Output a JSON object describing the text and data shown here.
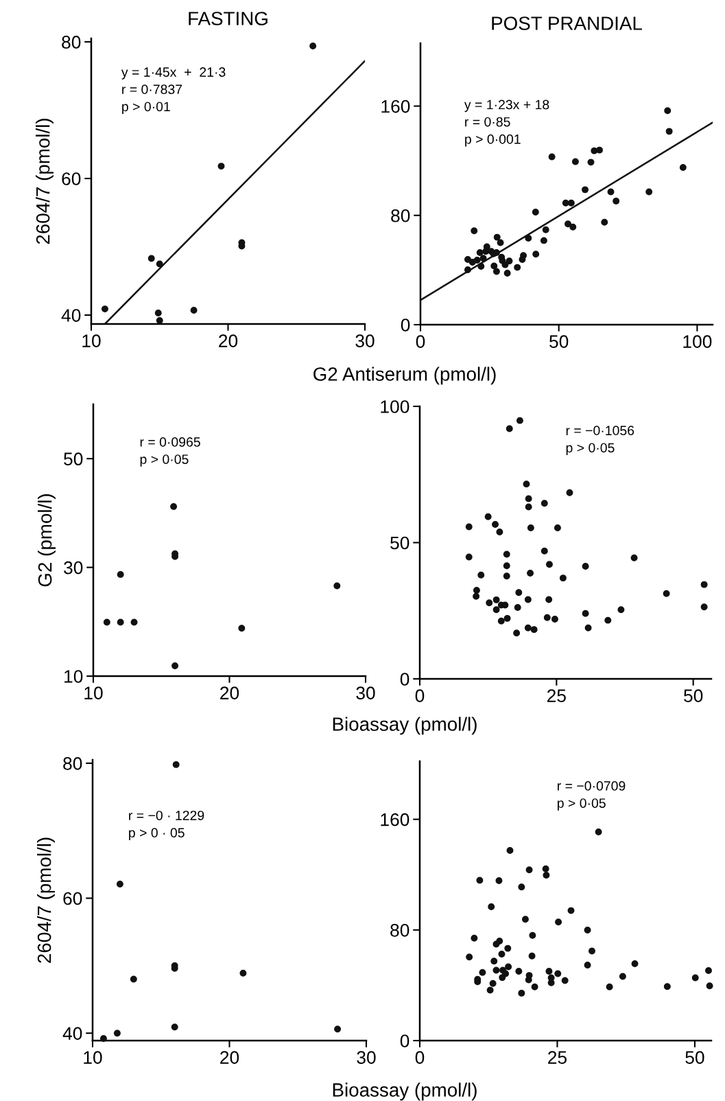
{
  "chart_data": [
    {
      "type": "scatter",
      "title": "FASTING",
      "ylabel": "2604/7 (pmol/l)",
      "xlabel": "G2 Antiserum (pmol/l)",
      "xlim": [
        10,
        30
      ],
      "ylim": [
        38.7,
        80.5
      ],
      "xticks": [
        10,
        20,
        30
      ],
      "yticks": [
        40,
        60,
        80
      ],
      "annotations": [
        "y = 1·45x  +  21·3\nr = 0·7837\np > 0·01"
      ],
      "series": [
        {
          "marker": "circle",
          "color": "#111111",
          "x": [
            11.0,
            14.4,
            15.0,
            14.9,
            15.0,
            17.5,
            19.5,
            21.0,
            21.0,
            26.2
          ],
          "values": [
            40.9,
            48.3,
            47.5,
            40.3,
            39.2,
            40.7,
            61.8,
            50.6,
            50.1,
            79.4
          ]
        },
        {
          "type": "line",
          "color": "#111111",
          "x": [
            11,
            30
          ],
          "values": [
            38.7,
            77.2
          ]
        }
      ]
    },
    {
      "type": "scatter",
      "title": "POST PRANDIAL",
      "xlim": [
        0,
        105.6
      ],
      "ylim": [
        0,
        206
      ],
      "xticks": [
        0,
        50,
        100
      ],
      "yticks": [
        0,
        80,
        160
      ],
      "annotations": [
        "y = 1·23x + 18\nr = 0·85\np > 0·001"
      ],
      "series": [
        {
          "marker": "circle",
          "color": "#111111",
          "x": [
            19.4,
            17.1,
            17.1,
            18.8,
            20.5,
            21.5,
            21.9,
            22.7,
            24.0,
            23.6,
            25.6,
            26.4,
            27.5,
            27.7,
            28.9,
            29.3,
            29.6,
            26.6,
            27.5,
            30.6,
            32.1,
            31.4,
            35.0,
            36.8,
            37.2,
            39.0,
            41.7,
            41.6,
            44.6,
            45.3,
            47.5,
            52.5,
            54.5,
            53.3,
            55.1,
            56.0,
            59.5,
            61.6,
            62.8,
            64.7,
            66.5,
            68.8,
            70.7,
            82.6,
            89.3,
            89.9,
            94.9
          ],
          "values": [
            68.7,
            47.7,
            40.2,
            45.7,
            47.2,
            52.8,
            42.7,
            48.6,
            57.0,
            53.6,
            53.6,
            51.9,
            52.8,
            64.0,
            60.0,
            49.4,
            46.9,
            43.0,
            38.9,
            43.9,
            46.6,
            37.7,
            41.9,
            47.7,
            50.6,
            63.3,
            51.6,
            82.4,
            61.6,
            69.5,
            122.8,
            89.1,
            89.1,
            73.7,
            71.5,
            119.3,
            98.8,
            118.9,
            127.3,
            127.8,
            75.0,
            97.2,
            90.5,
            97.2,
            156.6,
            141.5,
            115.1
          ]
        },
        {
          "type": "line",
          "color": "#111111",
          "x": [
            0,
            105.6
          ],
          "values": [
            18,
            148
          ]
        }
      ]
    },
    {
      "type": "scatter",
      "ylabel": "G2 (pmol/l)",
      "xlabel": "Bioassay (pmol/l)",
      "xlim": [
        10,
        30
      ],
      "ylim": [
        10,
        60
      ],
      "xticks": [
        10,
        20,
        30
      ],
      "yticks": [
        10,
        30,
        50
      ],
      "annotations": [
        "r = 0·0965\np > 0·05"
      ],
      "series": [
        {
          "marker": "circle",
          "color": "#111111",
          "x": [
            11.0,
            12.0,
            13.0,
            12.0,
            15.9,
            16.0,
            16.0,
            16.0,
            20.9,
            27.9
          ],
          "values": [
            19.9,
            19.9,
            19.9,
            28.7,
            41.2,
            32.5,
            32.0,
            11.9,
            18.8,
            26.6
          ]
        }
      ]
    },
    {
      "type": "scatter",
      "xlim": [
        0,
        53.3
      ],
      "ylim": [
        0,
        100
      ],
      "xticks": [
        0,
        25,
        50
      ],
      "yticks": [
        0,
        50,
        100
      ],
      "annotations": [
        "r = −0·1056\np > 0·05"
      ],
      "series": [
        {
          "marker": "circle",
          "color": "#111111",
          "x": [
            16.4,
            18.3,
            19.5,
            19.9,
            19.9,
            22.8,
            27.4,
            12.5,
            13.8,
            14.6,
            9.0,
            20.3,
            25.2,
            9.0,
            15.9,
            22.8,
            15.9,
            23.7,
            30.3,
            39.2,
            11.2,
            15.9,
            20.2,
            26.2,
            10.4,
            10.3,
            18.1,
            19.8,
            23.6,
            12.7,
            14.0,
            14.9,
            15.6,
            14.0,
            14.9,
            16.0,
            17.9,
            23.3,
            24.7,
            30.3,
            36.8,
            34.4,
            30.8,
            19.8,
            20.9,
            17.7,
            45.1,
            52.0,
            52.0
          ],
          "values": [
            91.8,
            94.8,
            71.5,
            66.1,
            63.1,
            64.4,
            68.3,
            59.5,
            56.7,
            53.9,
            55.8,
            55.4,
            55.4,
            44.7,
            45.7,
            46.9,
            41.5,
            42.0,
            41.3,
            44.4,
            38.1,
            37.7,
            38.8,
            37.0,
            32.5,
            30.3,
            31.7,
            29.1,
            29.1,
            27.9,
            29.0,
            27.1,
            27.1,
            25.4,
            21.2,
            22.2,
            26.2,
            22.5,
            21.9,
            24.0,
            25.4,
            21.5,
            18.7,
            18.7,
            18.1,
            16.8,
            31.3,
            34.6,
            26.4
          ]
        }
      ]
    },
    {
      "type": "scatter",
      "ylabel": "2604/7 (pmol/l)",
      "xlabel": "Bioassay (pmol/l)",
      "xlim": [
        10,
        30
      ],
      "ylim": [
        38.9,
        80.5
      ],
      "xticks": [
        10,
        20,
        30
      ],
      "yticks": [
        40,
        60,
        80
      ],
      "annotations": [
        "r = −0 · 1229\np > 0 · 05"
      ],
      "series": [
        {
          "marker": "circle",
          "color": "#111111",
          "x": [
            16.1,
            12.0,
            13.0,
            16.0,
            16.0,
            21.0,
            11.8,
            10.8,
            16.0,
            27.9
          ],
          "values": [
            79.8,
            62.1,
            48.0,
            50.0,
            49.6,
            48.9,
            40.0,
            39.2,
            40.9,
            40.6
          ]
        }
      ]
    },
    {
      "type": "scatter",
      "xlim": [
        0,
        53.0
      ],
      "ylim": [
        0,
        202
      ],
      "xticks": [
        0,
        25,
        50
      ],
      "yticks": [
        0,
        80,
        160
      ],
      "annotations": [
        "r = −0·0709\np > 0·05"
      ],
      "series": [
        {
          "marker": "circle",
          "color": "#111111",
          "x": [
            32.5,
            16.4,
            19.9,
            22.9,
            23.0,
            10.9,
            14.4,
            18.5,
            13.0,
            27.5,
            19.2,
            25.2,
            30.5,
            20.5,
            9.9,
            14.5,
            13.9,
            16.0,
            31.3,
            14.9,
            20.4,
            9.0,
            13.5,
            39.1,
            30.5,
            13.9,
            15.1,
            16.1,
            15.6,
            15.0,
            11.4,
            18.0,
            23.5,
            25.1,
            19.9,
            19.8,
            23.9,
            23.9,
            26.4,
            10.5,
            10.5,
            13.3,
            12.8,
            20.9,
            18.5,
            36.9,
            34.5,
            45.0,
            50.1,
            52.5,
            52.7
          ],
          "values": [
            150.9,
            137.5,
            123.5,
            124.2,
            119.6,
            115.9,
            115.6,
            111.1,
            96.8,
            94.0,
            87.7,
            85.7,
            79.9,
            76.1,
            74.1,
            72.0,
            69.7,
            66.7,
            64.8,
            62.5,
            61.2,
            60.4,
            57.5,
            55.6,
            54.6,
            50.9,
            50.9,
            53.4,
            48.4,
            45.6,
            49.3,
            50.1,
            50.1,
            48.4,
            47.1,
            43.9,
            45.4,
            41.8,
            43.4,
            44.3,
            42.6,
            41.3,
            36.5,
            38.8,
            34.3,
            46.4,
            38.8,
            39.1,
            45.4,
            50.6,
            39.6
          ]
        }
      ]
    }
  ]
}
